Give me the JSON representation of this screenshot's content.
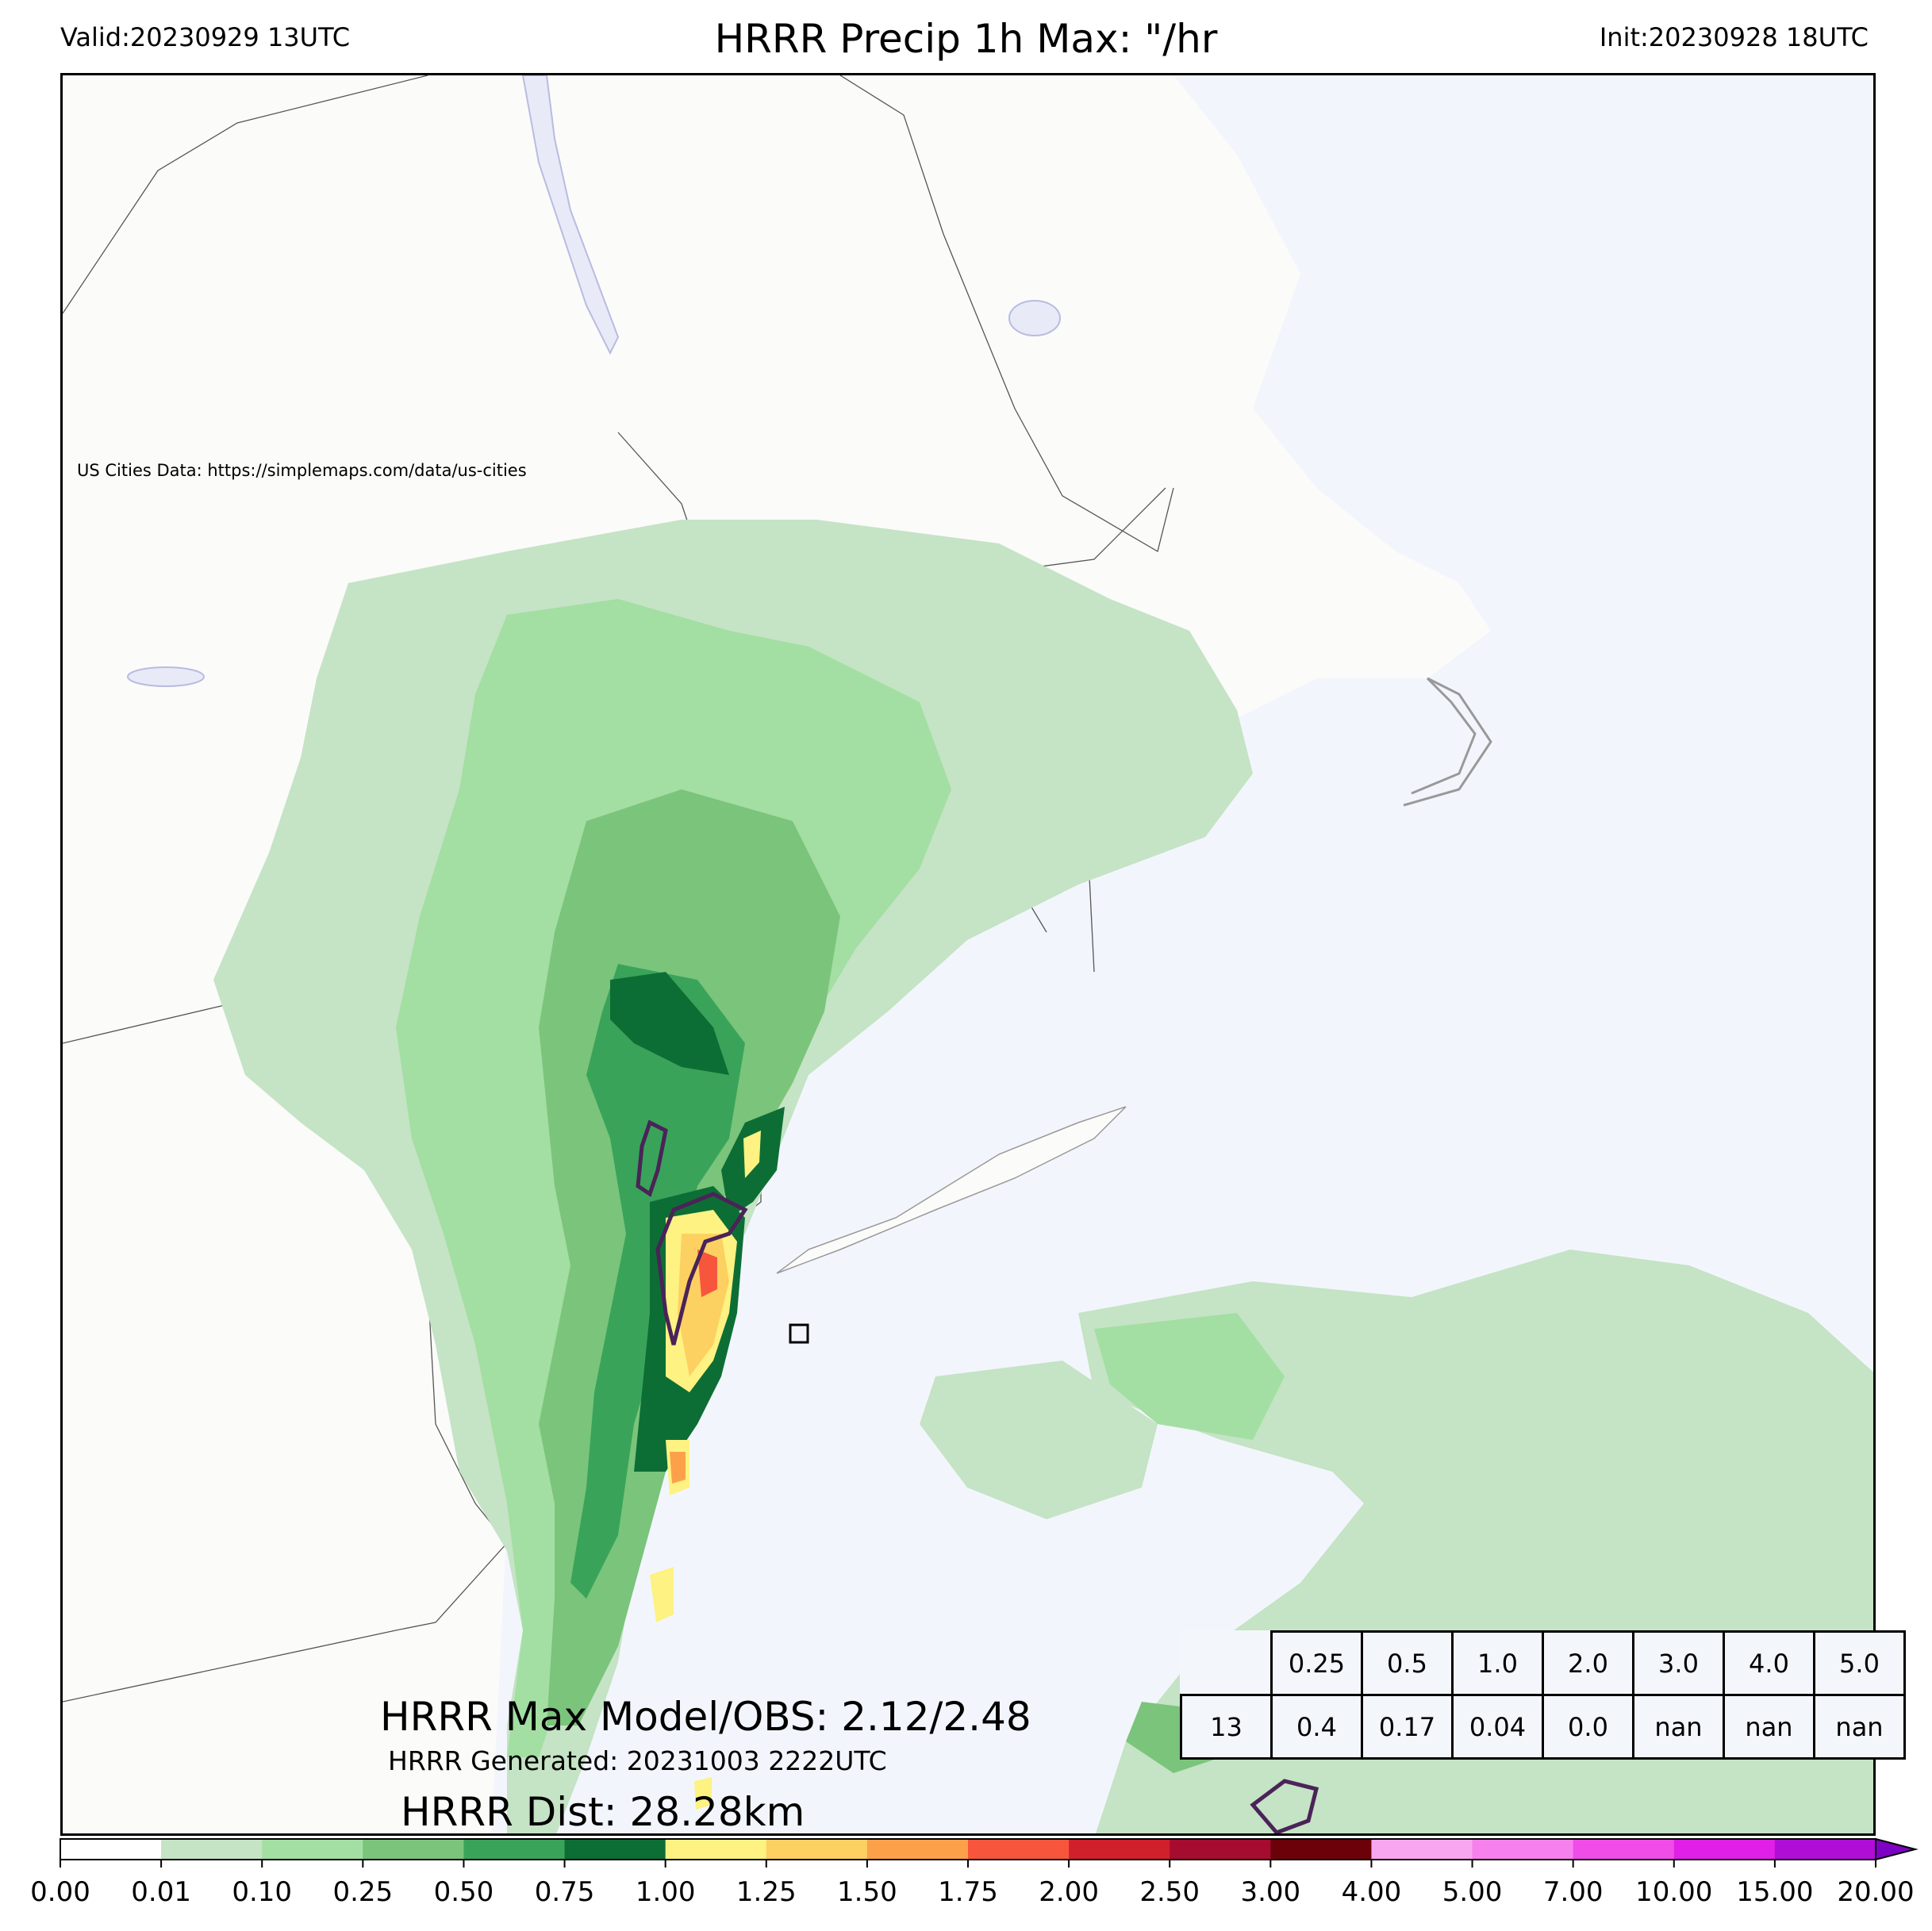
{
  "header": {
    "valid": "Valid:20230929 13UTC",
    "title": "HRRR Precip 1h Max: \"/hr",
    "init": "Init:20230928 18UTC"
  },
  "map": {
    "credit": "US Cities Data: https://simplemaps.com/data/us-cities",
    "colors": {
      "land": "#fbfbfa",
      "water": "#f2f6fc",
      "lakes": "#e8eaf8"
    }
  },
  "stats": {
    "max_label": "HRRR Max Model/OBS: 2.12/2.48",
    "generated": "HRRR Generated: 20231003 2222UTC",
    "dist": "HRRR Dist: 28.28km"
  },
  "threshold_table": {
    "thresholds": [
      "0.25",
      "0.5",
      "1.0",
      "2.0",
      "3.0",
      "4.0",
      "5.0"
    ],
    "values": [
      "13",
      "0.4",
      "0.17",
      "0.04",
      "0.0",
      "nan",
      "nan",
      "nan"
    ]
  },
  "colorbar": {
    "ticks": [
      "0.00",
      "0.01",
      "0.10",
      "0.25",
      "0.50",
      "0.75",
      "1.00",
      "1.25",
      "1.50",
      "1.75",
      "2.00",
      "2.50",
      "3.00",
      "4.00",
      "5.00",
      "7.00",
      "10.00",
      "15.00",
      "20.00"
    ],
    "colors": [
      "#ffffff",
      "#c5e3c5",
      "#a3dea3",
      "#7bc47b",
      "#3aa35a",
      "#0d6e35",
      "#fdf282",
      "#fdd062",
      "#fca14a",
      "#f7563d",
      "#d0202b",
      "#a50c30",
      "#6b0109",
      "#f8a6f0",
      "#f680ec",
      "#f04ce8",
      "#e020e6",
      "#b00ed6",
      "#7d02c4"
    ]
  }
}
